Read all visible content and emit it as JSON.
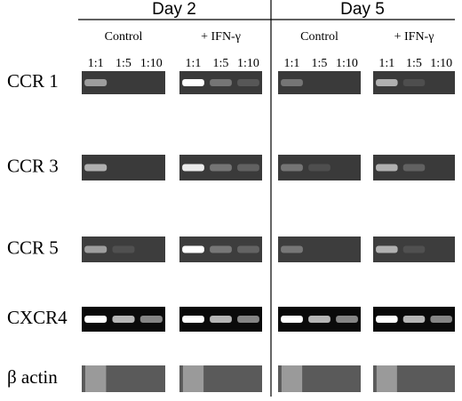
{
  "days": [
    {
      "label": "Day 2",
      "groups": [
        {
          "label": "Control",
          "lanes": [
            "1:1",
            "1:5",
            "1:10"
          ]
        },
        {
          "label": "+ IFN-γ",
          "lanes": [
            "1:1",
            "1:5",
            "1:10"
          ]
        }
      ]
    },
    {
      "label": "Day 5",
      "groups": [
        {
          "label": "Control",
          "lanes": [
            "1:1",
            "1:5",
            "1:10"
          ]
        },
        {
          "label": "+ IFN-γ",
          "lanes": [
            "1:1",
            "1:5",
            "1:10"
          ]
        }
      ]
    }
  ],
  "rows": [
    "CCR 1",
    "CCR 3",
    "CCR 5",
    "CXCR4",
    "β actin"
  ]
}
